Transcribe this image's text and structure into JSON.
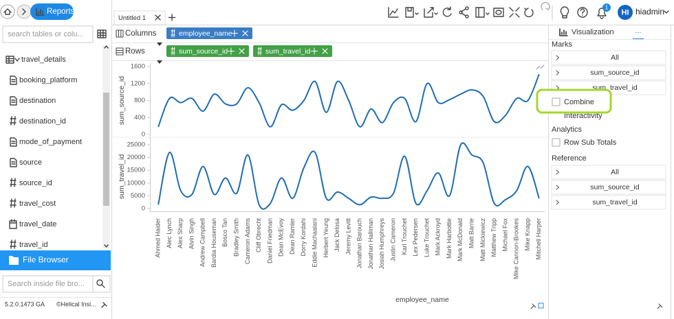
{
  "header": {
    "app": "Reports"
  },
  "sidebar": {
    "search_placeholder": "search tables or colu...",
    "items": [
      {
        "icon": "table",
        "label": "travel_details"
      },
      {
        "icon": "text",
        "label": "booking_platform"
      },
      {
        "icon": "text",
        "label": "destination"
      },
      {
        "icon": "number",
        "label": "destination_id"
      },
      {
        "icon": "text",
        "label": "mode_of_payment"
      },
      {
        "icon": "text",
        "label": "source"
      },
      {
        "icon": "number",
        "label": "source_id"
      },
      {
        "icon": "number",
        "label": "travel_cost"
      },
      {
        "icon": "date",
        "label": "travel_date"
      },
      {
        "icon": "number",
        "label": "travel_id"
      }
    ],
    "file_browser": "File Browser",
    "file_search_placeholder": "Search inside file bro...",
    "version": "5.2.0.1473 GA",
    "copyright": "©Helical Insi..."
  },
  "tabs": [
    "Untitled 1"
  ],
  "user": {
    "initials": "HI",
    "name": "hiadmin",
    "notifications": 1
  },
  "shelves": {
    "columns": {
      "label": "Columns",
      "fields": [
        "employee_name"
      ]
    },
    "rows": {
      "label": "Rows",
      "fields": [
        "sum_source_id",
        "sum_travel_id"
      ]
    }
  },
  "chart_data": {
    "type": "line",
    "x_label": "employee_name",
    "categories": [
      "Ahmed Haider",
      "Alec Lynch",
      "Alex Sharp",
      "Alvin Singh",
      "Andrew Campbell",
      "Bardia Houseman",
      "Bosco Tan",
      "Bradley Smith",
      "Cameron Adams",
      "Cliff Obrecht",
      "Daniel Friedman",
      "Dean McEvoy",
      "Dean Ramler",
      "Dorry Kordahi",
      "Eddie Machaalani",
      "Herbert Yeung",
      "Jack Delosa",
      "Jeremy Levitt",
      "Jonathan Barouch",
      "Jonathan Halliman",
      "Josiah Humphreys",
      "Justin Cameron",
      "Karl Trouchet",
      "Lex Pedersen",
      "Luke Trouchet",
      "Mark Ackroyd",
      "Mark Harbottle",
      "Mark McDonald",
      "Matt Barrie",
      "Matt Mickiewicz",
      "Matthew Tripp",
      "Michael Fox",
      "Mike Cannon-Brookes",
      "Mike Knapp",
      "Mitchell Harper"
    ],
    "series": [
      {
        "name": "sum_source_id",
        "color": "#1f6db0",
        "values": [
          180,
          850,
          750,
          850,
          550,
          950,
          720,
          720,
          1100,
          750,
          180,
          700,
          570,
          800,
          1250,
          520,
          1250,
          800,
          180,
          600,
          280,
          750,
          850,
          300,
          1200,
          750,
          820,
          950,
          1050,
          900,
          300,
          450,
          850,
          800,
          1420
        ],
        "ylim": [
          0,
          1600
        ],
        "yticks": [
          0,
          400,
          800,
          1200,
          1600
        ]
      },
      {
        "name": "sum_travel_id",
        "color": "#1f6db0",
        "values": [
          1500,
          22000,
          7000,
          5500,
          16500,
          5500,
          12000,
          6000,
          21000,
          1500,
          2000,
          12000,
          4000,
          16000,
          22000,
          4000,
          6500,
          4000,
          1500,
          4500,
          4000,
          6000,
          20500,
          2000,
          7000,
          14000,
          5000,
          25000,
          21000,
          18000,
          2000,
          3500,
          7000,
          16500,
          4000
        ],
        "ylim": [
          0,
          25000
        ],
        "yticks": [
          0,
          5000,
          10000,
          15000,
          20000,
          25000
        ]
      }
    ]
  },
  "panel": {
    "tab": "Visualization",
    "more": "...",
    "marks": {
      "title": "Marks",
      "items": [
        "All",
        "sum_source_id",
        "sum_travel_id"
      ]
    },
    "combine": "Combine",
    "interactivity": "Interactivity",
    "analytics": {
      "title": "Analytics",
      "option": "Row Sub Totals"
    },
    "reference": {
      "title": "Reference",
      "items": [
        "All",
        "sum_source_id",
        "sum_travel_id"
      ]
    }
  }
}
